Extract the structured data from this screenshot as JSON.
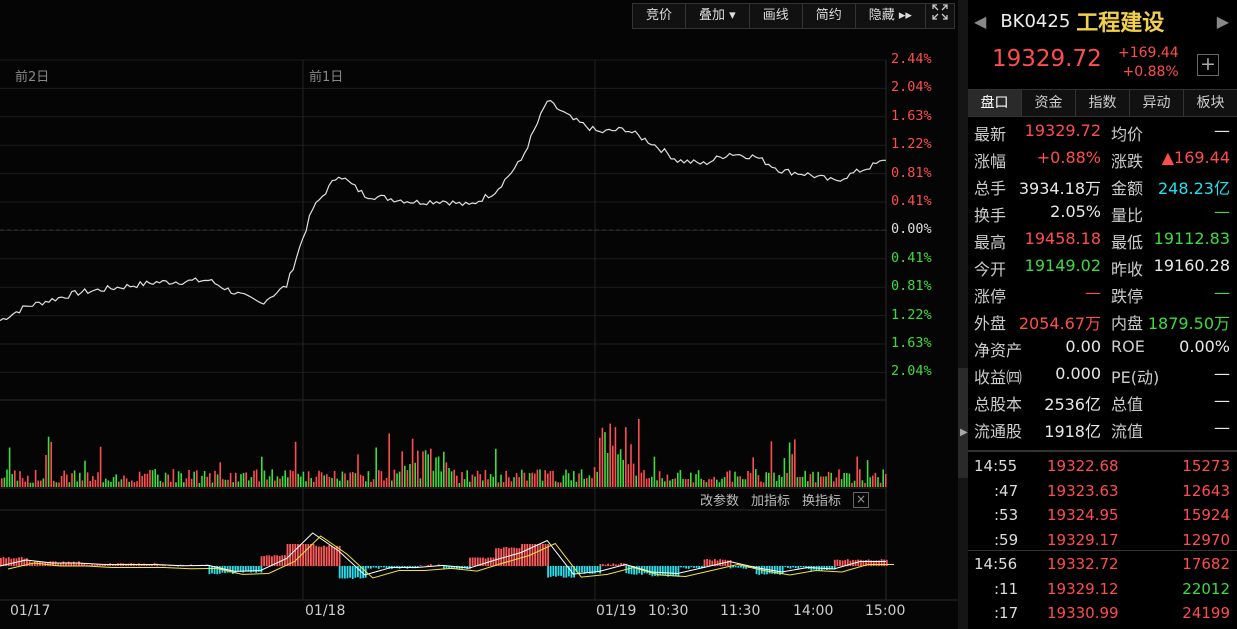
{
  "toolbar": {
    "items": [
      "竞价",
      "叠加 ▾",
      "画线",
      "简约",
      "隐藏 ▸▸"
    ],
    "expand_icon": "fullscreen-icon"
  },
  "chart": {
    "day_labels": [
      "前2日",
      "前1日"
    ],
    "pct_labels": [
      "2.44%",
      "2.04%",
      "1.63%",
      "1.22%",
      "0.81%",
      "0.41%",
      "0.00%",
      "0.41%",
      "0.81%",
      "1.22%",
      "1.63%",
      "2.04%"
    ],
    "x_labels": [
      "01/17",
      "01/18",
      "01/19",
      "10:30",
      "11:30",
      "14:00",
      "15:00"
    ],
    "sub_tools": [
      "改参数",
      "加指标",
      "换指标"
    ],
    "close_glyph": "×",
    "colors": {
      "up": "#ff4d4d",
      "down": "#3ddc3d",
      "neutral": "#e0e0e0",
      "macd_pos": "#ff5a5a",
      "macd_neg": "#22e0ee",
      "dif": "#ffffff",
      "dea": "#f5e33a"
    }
  },
  "chart_data": {
    "type": "line",
    "title": "",
    "pct_range": [
      -2.44,
      2.44
    ],
    "series": [
      {
        "values": [
          -1.3,
          -1.1,
          -1.0,
          -0.9,
          -0.85,
          -0.8,
          -0.75,
          -0.74,
          -0.72,
          -0.9,
          -1.05,
          -0.8,
          0.3,
          0.8,
          0.5,
          0.45,
          0.4,
          0.42,
          0.35,
          0.55,
          1.0,
          1.85,
          1.58,
          1.4,
          1.45,
          1.25,
          1.0,
          0.95,
          1.1,
          1.05,
          0.85,
          0.8,
          0.7,
          0.85,
          1.0
        ]
      }
    ]
  },
  "panel": {
    "code": "BK0425",
    "name": "工程建设",
    "price": "19329.72",
    "chg": "+169.44",
    "chg_pct": "+0.88%",
    "tabs": [
      "盘口",
      "资金",
      "指数",
      "异动",
      "板块"
    ],
    "stats": [
      {
        "l1": "最新",
        "v1": "19329.72",
        "c1": "red",
        "l2": "均价",
        "v2": "—",
        "c2": "white"
      },
      {
        "l1": "涨幅",
        "v1": "+0.88%",
        "c1": "red",
        "l2": "涨跌",
        "v2": "▲169.44",
        "c2": "red"
      },
      {
        "l1": "总手",
        "v1": "3934.18万",
        "c1": "white",
        "l2": "金额",
        "v2": "248.23亿",
        "c2": "cyan"
      },
      {
        "l1": "换手",
        "v1": "2.05%",
        "c1": "white",
        "l2": "量比",
        "v2": "—",
        "c2": "green"
      },
      {
        "l1": "最高",
        "v1": "19458.18",
        "c1": "red",
        "l2": "最低",
        "v2": "19112.83",
        "c2": "green"
      },
      {
        "l1": "今开",
        "v1": "19149.02",
        "c1": "green",
        "l2": "昨收",
        "v2": "19160.28",
        "c2": "white"
      },
      {
        "l1": "涨停",
        "v1": "—",
        "c1": "red",
        "l2": "跌停",
        "v2": "—",
        "c2": "green"
      },
      {
        "l1": "外盘",
        "v1": "2054.67万",
        "c1": "red",
        "l2": "内盘",
        "v2": "1879.50万",
        "c2": "green"
      },
      {
        "l1": "净资产",
        "v1": "0.00",
        "c1": "white",
        "l2": "ROE",
        "v2": "0.00%",
        "c2": "white"
      },
      {
        "l1": "收益㈣",
        "v1": "0.000",
        "c1": "white",
        "l2": "PE(动)",
        "v2": "—",
        "c2": "white"
      },
      {
        "l1": "总股本",
        "v1": "2536亿",
        "c1": "white",
        "l2": "总值",
        "v2": "—",
        "c2": "white"
      },
      {
        "l1": "流通股",
        "v1": "1918亿",
        "c1": "white",
        "l2": "流值",
        "v2": "—",
        "c2": "white"
      }
    ],
    "ticks": [
      {
        "t": "14:55",
        "p": "19322.68",
        "v": "15273",
        "c": "red",
        "main": true
      },
      {
        "t": ":47",
        "p": "19323.63",
        "v": "12643",
        "c": "red",
        "main": false
      },
      {
        "t": ":53",
        "p": "19324.95",
        "v": "15924",
        "c": "red",
        "main": false
      },
      {
        "t": ":59",
        "p": "19329.17",
        "v": "12970",
        "c": "red",
        "main": false
      },
      {
        "t": "14:56",
        "p": "19332.72",
        "v": "17682",
        "c": "red",
        "main": true
      },
      {
        "t": ":11",
        "p": "19329.12",
        "v": "22012",
        "c": "green",
        "main": false
      },
      {
        "t": ":17",
        "p": "19330.99",
        "v": "24199",
        "c": "red",
        "main": false
      }
    ]
  }
}
